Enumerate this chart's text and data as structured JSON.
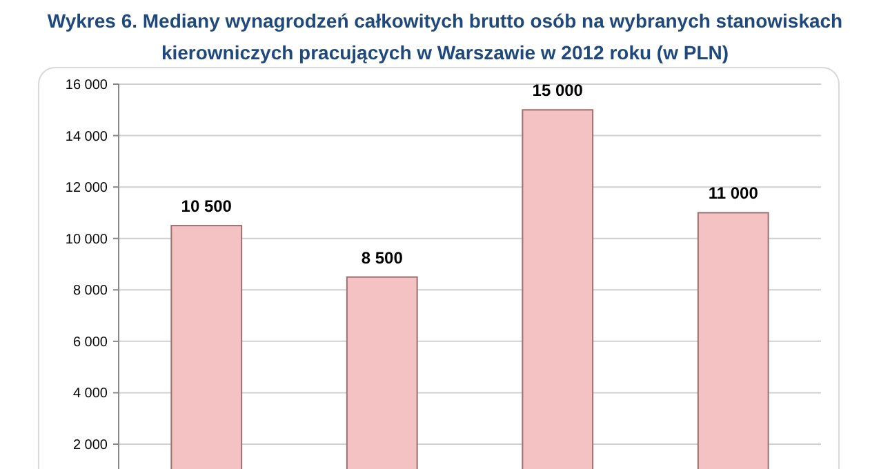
{
  "chart_data": {
    "type": "bar",
    "title": "Wykres 6. Mediany wynagrodzeń całkowitych brutto osób na wybranych stanowiskach kierowniczych pracujących w Warszawie w 2012 roku (w PLN)",
    "categories": [
      null,
      null,
      null,
      null
    ],
    "values": [
      10500,
      8500,
      15000,
      11000
    ],
    "value_labels": [
      "10 500",
      "8 500",
      "15 000",
      "11 000"
    ],
    "color": "#f4c2c2",
    "ylim": [
      1000,
      16000
    ],
    "yticks": [
      {
        "value": 2000,
        "label": "2 000"
      },
      {
        "value": 4000,
        "label": "4 000"
      },
      {
        "value": 6000,
        "label": "6 000"
      },
      {
        "value": 8000,
        "label": "8 000"
      },
      {
        "value": 10000,
        "label": "10 000"
      },
      {
        "value": 12000,
        "label": "12 000"
      },
      {
        "value": 14000,
        "label": "14 000"
      },
      {
        "value": 16000,
        "label": "16 000"
      }
    ],
    "grid": "y"
  }
}
